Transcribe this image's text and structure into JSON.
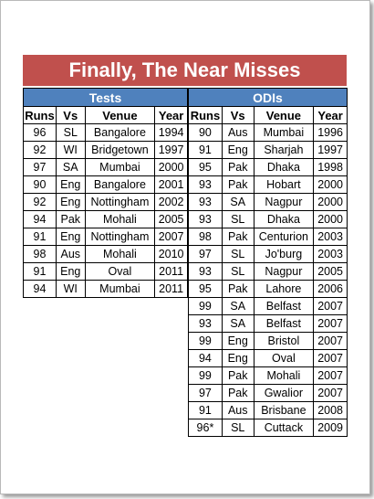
{
  "title": "Finally, The Near Misses",
  "tests": {
    "heading": "Tests",
    "columns": [
      "Runs",
      "Vs",
      "Venue",
      "Year"
    ],
    "rows": [
      [
        "96",
        "SL",
        "Bangalore",
        "1994"
      ],
      [
        "92",
        "WI",
        "Bridgetown",
        "1997"
      ],
      [
        "97",
        "SA",
        "Mumbai",
        "2000"
      ],
      [
        "90",
        "Eng",
        "Bangalore",
        "2001"
      ],
      [
        "92",
        "Eng",
        "Nottingham",
        "2002"
      ],
      [
        "94",
        "Pak",
        "Mohali",
        "2005"
      ],
      [
        "91",
        "Eng",
        "Nottingham",
        "2007"
      ],
      [
        "98",
        "Aus",
        "Mohali",
        "2010"
      ],
      [
        "91",
        "Eng",
        "Oval",
        "2011"
      ],
      [
        "94",
        "WI",
        "Mumbai",
        "2011"
      ]
    ]
  },
  "odis": {
    "heading": "ODIs",
    "columns": [
      "Runs",
      "Vs",
      "Venue",
      "Year"
    ],
    "rows": [
      [
        "90",
        "Aus",
        "Mumbai",
        "1996"
      ],
      [
        "91",
        "Eng",
        "Sharjah",
        "1997"
      ],
      [
        "95",
        "Pak",
        "Dhaka",
        "1998"
      ],
      [
        "93",
        "Pak",
        "Hobart",
        "2000"
      ],
      [
        "93",
        "SA",
        "Nagpur",
        "2000"
      ],
      [
        "93",
        "SL",
        "Dhaka",
        "2000"
      ],
      [
        "98",
        "Pak",
        "Centurion",
        "2003"
      ],
      [
        "97",
        "SL",
        "Jo'burg",
        "2003"
      ],
      [
        "93",
        "SL",
        "Nagpur",
        "2005"
      ],
      [
        "95",
        "Pak",
        "Lahore",
        "2006"
      ],
      [
        "99",
        "SA",
        "Belfast",
        "2007"
      ],
      [
        "93",
        "SA",
        "Belfast",
        "2007"
      ],
      [
        "99",
        "Eng",
        "Bristol",
        "2007"
      ],
      [
        "94",
        "Eng",
        "Oval",
        "2007"
      ],
      [
        "99",
        "Pak",
        "Mohali",
        "2007"
      ],
      [
        "97",
        "Pak",
        "Gwalior",
        "2007"
      ],
      [
        "91",
        "Aus",
        "Brisbane",
        "2008"
      ],
      [
        "96*",
        "SL",
        "Cuttack",
        "2009"
      ]
    ]
  },
  "colors": {
    "title_bg": "#c0504d",
    "header_bg": "#4f81bd"
  }
}
